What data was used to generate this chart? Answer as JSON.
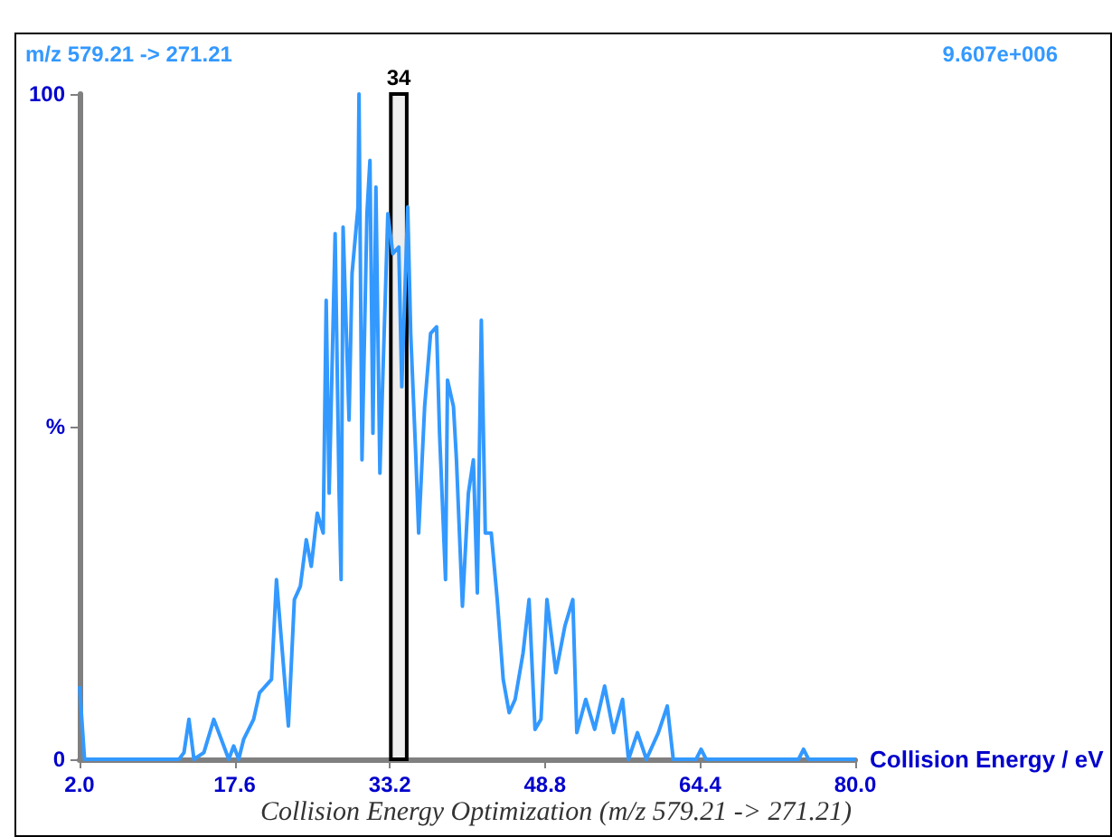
{
  "chart_data": {
    "type": "line",
    "xlabel": "Collision Energy / eV",
    "annotations": [
      "m/z 579.21 -> 271.21",
      "9.607e+006",
      "Collision Energy Optimization (m/z 579.21 -> 271.21)"
    ],
    "xlim": [
      2.0,
      80.0
    ],
    "xticks": [
      {
        "value": 2,
        "label": "2.0"
      },
      {
        "value": 17.6,
        "label": "17.6"
      },
      {
        "value": 33.2,
        "label": "33.2"
      },
      {
        "value": 48.8,
        "label": "48.8"
      },
      {
        "value": 64.4,
        "label": "64.4"
      },
      {
        "value": 80,
        "label": "80.0"
      }
    ],
    "ylim": [
      0,
      100
    ],
    "yticks": [
      {
        "value": 0,
        "label": "0"
      },
      {
        "value": 50,
        "label": "%"
      },
      {
        "value": 100,
        "label": "100"
      }
    ],
    "marker": "none",
    "bands": [
      {
        "axis": "x",
        "from": 33.3,
        "to": 34.9,
        "label": "34",
        "color": "#eeeeee"
      }
    ],
    "series": [
      {
        "color": "#3399ff",
        "x": [
          2,
          2.5,
          12,
          12.5,
          13,
          13.5,
          14.5,
          15.5,
          16.5,
          17,
          17.5,
          18,
          18.5,
          19.5,
          20.1,
          21.3,
          21.8,
          23,
          23.6,
          24.2,
          24.8,
          25.3,
          25.9,
          26.5,
          26.8,
          27.1,
          27.7,
          28.1,
          28.3,
          28.5,
          29.1,
          29.4,
          30,
          30.1,
          30.4,
          30.9,
          31.2,
          31.5,
          31.8,
          32.2,
          33,
          33.5,
          34.1,
          34.4,
          35,
          35.3,
          35.8,
          36.1,
          36.7,
          37.3,
          37.9,
          38.2,
          38.8,
          39,
          39.6,
          39.9,
          40.5,
          41.1,
          41.6,
          42,
          42.4,
          42.8,
          43.4,
          44,
          44.6,
          45.2,
          45.8,
          46.6,
          47.2,
          47.8,
          48.4,
          49,
          49.9,
          50.8,
          51.6,
          52,
          52.9,
          53.8,
          54.8,
          55.7,
          56.6,
          57.2,
          58.1,
          59,
          60.2,
          61.1,
          61.7,
          64,
          64.5,
          65,
          74.3,
          74.8,
          75.3,
          80
        ],
        "values": [
          11,
          0,
          0,
          1,
          6,
          0,
          1,
          6,
          2,
          0,
          2,
          0,
          3,
          6,
          10,
          12,
          27,
          5,
          24,
          26,
          33,
          29,
          37,
          34,
          69,
          40,
          79,
          40,
          27,
          80,
          51,
          73,
          83,
          100,
          45,
          82,
          90,
          49,
          86,
          43,
          82,
          76,
          77,
          56,
          83,
          64,
          46,
          34,
          53,
          64,
          65,
          49,
          27,
          57,
          53,
          45,
          23,
          40,
          45,
          25,
          66,
          34,
          34,
          24,
          12,
          7,
          9,
          16,
          24,
          4.5,
          6,
          24,
          13,
          20,
          24,
          4,
          9,
          4.5,
          11,
          4,
          9,
          0,
          4,
          0,
          4,
          8,
          0,
          0,
          1.5,
          0,
          0,
          1.5,
          0,
          0
        ]
      }
    ]
  }
}
